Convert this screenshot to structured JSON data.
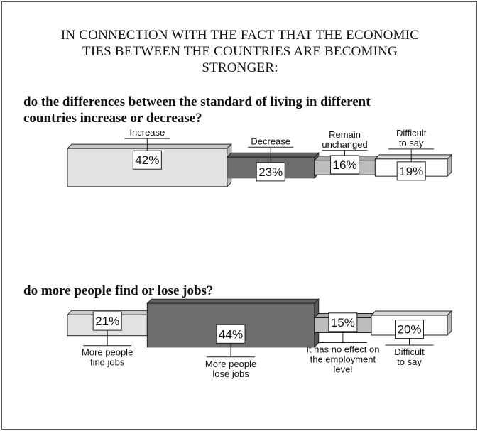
{
  "title": "IN CONNECTION WITH THE FACT THAT THE ECONOMIC\nTIES BETWEEN THE COUNTRIES ARE BECOMING\nSTRONGER:",
  "chart_data": [
    {
      "type": "bar",
      "title": "do the differences between the standard of living in different\ncountries increase or decrease?",
      "categories": [
        "Increase",
        "Decrease",
        "Remain unchanged",
        "Difficult to say"
      ],
      "values": [
        42,
        23,
        16,
        19
      ],
      "value_labels": [
        "42%",
        "23%",
        "16%",
        "19%"
      ],
      "label_position": "top",
      "colors": [
        "#e2e2e2",
        "#6e6e6e",
        "#bdbdbd",
        "#ffffff"
      ]
    },
    {
      "type": "bar",
      "title": "do more people find or lose jobs?",
      "categories": [
        "More people find jobs",
        "More people lose jobs",
        "It has no effect on the employment level",
        "Difficult to say"
      ],
      "category_lines": [
        [
          "More people",
          "find jobs"
        ],
        [
          "More people",
          "lose jobs"
        ],
        [
          "It has no effect on",
          "the employment",
          "level"
        ],
        [
          "Difficult",
          "to say"
        ]
      ],
      "values": [
        21,
        44,
        15,
        20
      ],
      "value_labels": [
        "21%",
        "44%",
        "15%",
        "20%"
      ],
      "label_position": "bottom",
      "colors": [
        "#e2e2e2",
        "#6e6e6e",
        "#bdbdbd",
        "#ffffff"
      ]
    }
  ],
  "q1_label_lines": [
    [
      "Increase"
    ],
    [
      "Decrease"
    ],
    [
      "Remain",
      "unchanged"
    ],
    [
      "Difficult",
      "to say"
    ]
  ]
}
